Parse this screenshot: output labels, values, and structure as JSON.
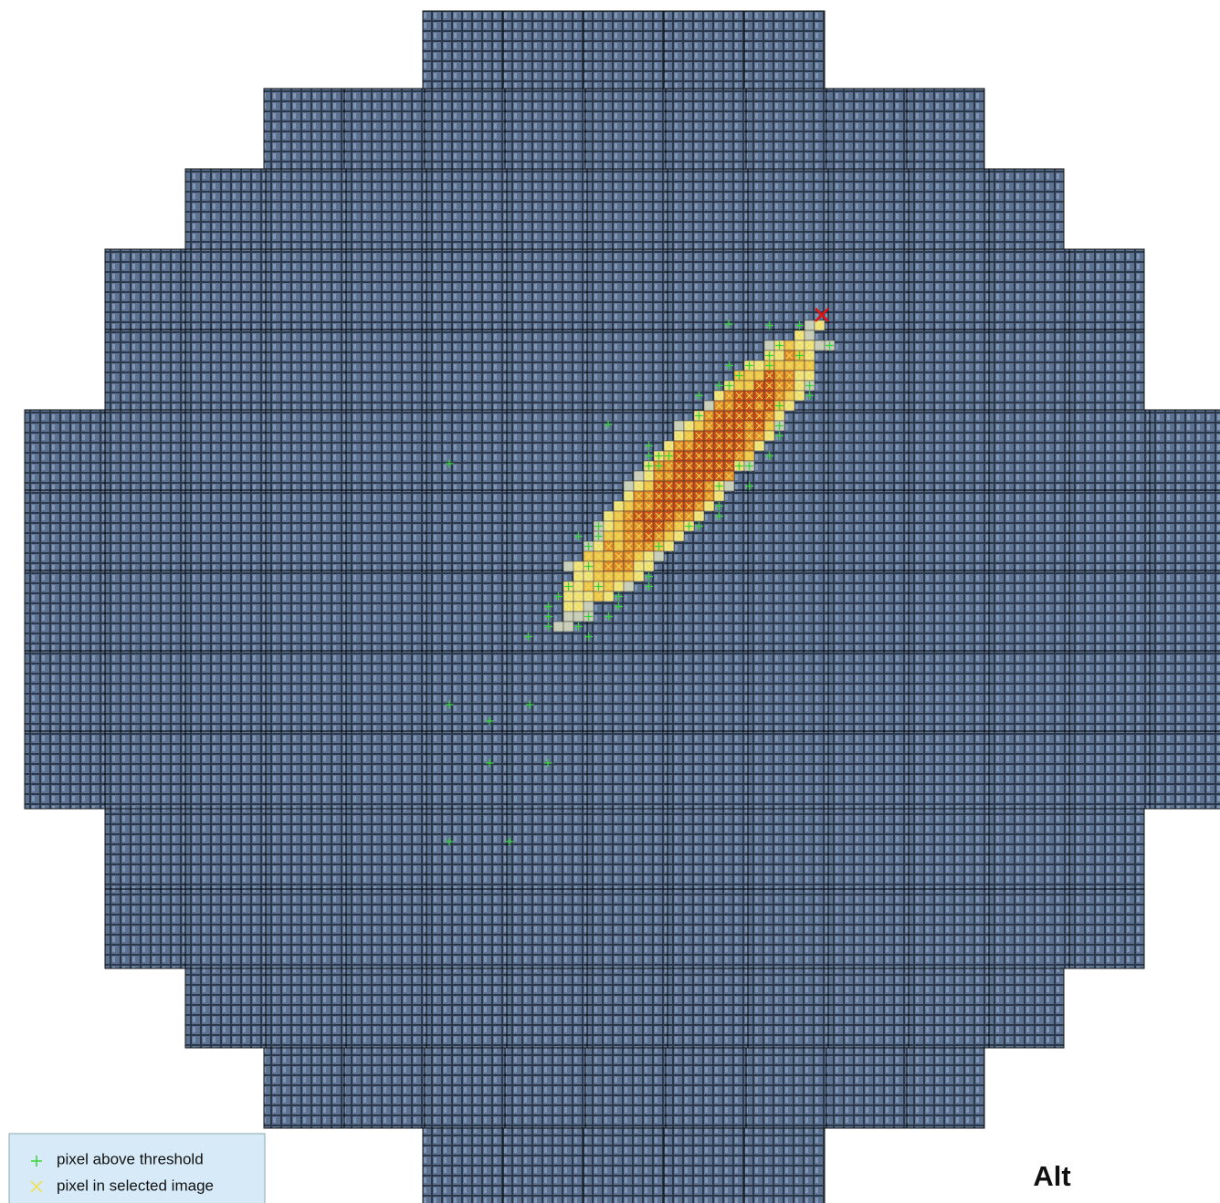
{
  "legend": {
    "items": [
      {
        "label": "pixel above threshold"
      },
      {
        "label": "pixel in selected image"
      }
    ]
  },
  "axis_label": "Alt"
}
